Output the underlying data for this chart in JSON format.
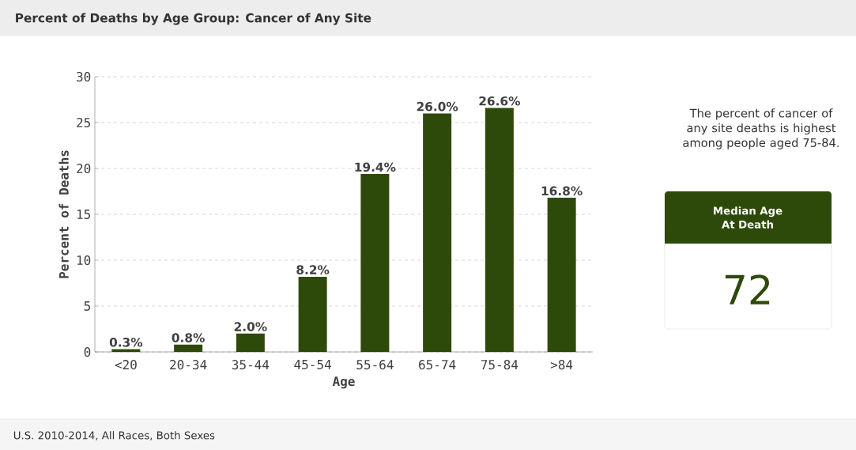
{
  "chart_data": {
    "type": "bar",
    "title": "Percent of Deaths by Age Group: Cancer of Any Site",
    "xlabel": "Age",
    "ylabel": "Percent of Deaths",
    "categories": [
      "<20",
      "20-34",
      "35-44",
      "45-54",
      "55-64",
      "65-74",
      "75-84",
      ">84"
    ],
    "values": [
      0.3,
      0.8,
      2.0,
      8.2,
      19.4,
      26.0,
      26.6,
      16.8
    ],
    "value_labels": [
      "0.3%",
      "0.8%",
      "2.0%",
      "8.2%",
      "19.4%",
      "26.0%",
      "26.6%",
      "16.8%"
    ],
    "color": "#2e4a0a",
    "ylim": [
      0,
      30
    ],
    "yticks": [
      0,
      5,
      10,
      15,
      20,
      25,
      30
    ],
    "grid": "y",
    "annotations": [
      "The percent of cancer of any site deaths is highest among people aged 75-84.",
      "Median Age At Death",
      "72",
      "U.S. 2010-2014, All Races, Both Sexes"
    ]
  }
}
